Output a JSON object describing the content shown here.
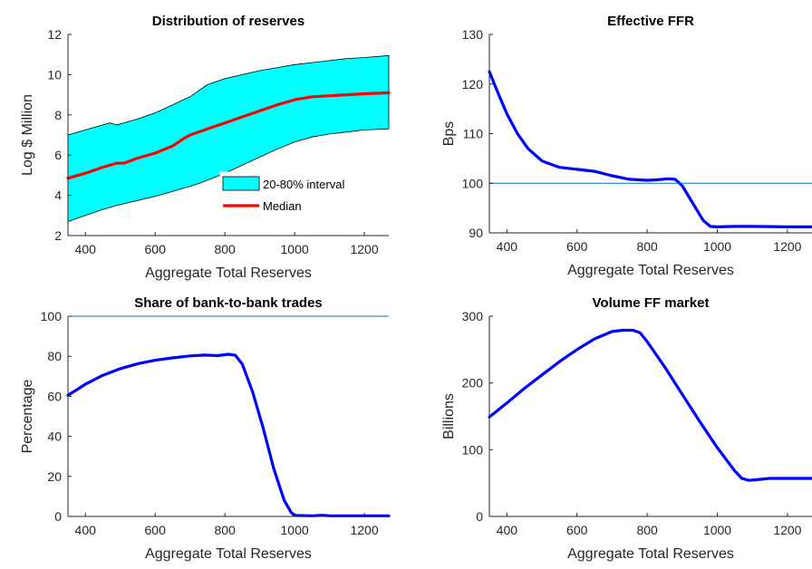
{
  "chart_data": [
    {
      "type": "area",
      "title": "Distribution of reserves",
      "xlabel": "Aggregate Total Reserves",
      "ylabel": "Log $ Million",
      "xlim": [
        350,
        1270
      ],
      "ylim": [
        2,
        12
      ],
      "xticks": [
        400,
        600,
        800,
        1000,
        1200
      ],
      "yticks": [
        2,
        4,
        6,
        8,
        10,
        12
      ],
      "legend_position": "lower-right",
      "series": [
        {
          "name": "20-80% interval",
          "kind": "band",
          "color": "#00ffff",
          "x": [
            350,
            400,
            450,
            470,
            490,
            550,
            600,
            650,
            700,
            720,
            750,
            800,
            850,
            900,
            950,
            1000,
            1050,
            1100,
            1150,
            1200,
            1270
          ],
          "upper": [
            7.0,
            7.25,
            7.5,
            7.6,
            7.5,
            7.8,
            8.1,
            8.5,
            8.9,
            9.15,
            9.5,
            9.8,
            10.0,
            10.2,
            10.35,
            10.5,
            10.6,
            10.7,
            10.8,
            10.85,
            10.95
          ],
          "lower": [
            2.7,
            3.0,
            3.3,
            3.4,
            3.5,
            3.75,
            3.95,
            4.2,
            4.45,
            4.55,
            4.75,
            5.1,
            5.5,
            5.9,
            6.3,
            6.65,
            6.9,
            7.05,
            7.15,
            7.25,
            7.3
          ]
        },
        {
          "name": "Median",
          "kind": "line",
          "color": "#ff0000",
          "x": [
            350,
            400,
            450,
            490,
            510,
            550,
            600,
            650,
            680,
            700,
            750,
            800,
            850,
            900,
            950,
            1000,
            1050,
            1100,
            1150,
            1200,
            1270
          ],
          "y": [
            4.85,
            5.1,
            5.4,
            5.6,
            5.6,
            5.85,
            6.1,
            6.45,
            6.8,
            7.0,
            7.3,
            7.6,
            7.9,
            8.2,
            8.5,
            8.75,
            8.9,
            8.95,
            9.0,
            9.05,
            9.1
          ]
        }
      ]
    },
    {
      "type": "line",
      "title": "Effective FFR",
      "xlabel": "Aggregate Total Reserves",
      "ylabel": "Bps",
      "xlim": [
        350,
        1270
      ],
      "ylim": [
        90,
        130
      ],
      "xticks": [
        400,
        600,
        800,
        1000,
        1200
      ],
      "yticks": [
        90,
        100,
        110,
        120,
        130
      ],
      "reference_line": 100,
      "series": [
        {
          "color": "#0000ff",
          "x": [
            350,
            370,
            400,
            430,
            460,
            500,
            550,
            600,
            650,
            700,
            750,
            800,
            830,
            860,
            880,
            900,
            930,
            960,
            980,
            1000,
            1050,
            1100,
            1200,
            1270
          ],
          "y": [
            122.5,
            119,
            114,
            110,
            107,
            104.5,
            103.2,
            102.8,
            102.4,
            101.5,
            100.8,
            100.6,
            100.7,
            100.9,
            100.8,
            99.5,
            96,
            92.5,
            91.3,
            91.2,
            91.3,
            91.3,
            91.2,
            91.2
          ]
        }
      ]
    },
    {
      "type": "line",
      "title": "Share of bank-to-bank trades",
      "xlabel": "Aggregate Total Reserves",
      "ylabel": "Percentage",
      "xlim": [
        350,
        1270
      ],
      "ylim": [
        0,
        100
      ],
      "xticks": [
        400,
        600,
        800,
        1000,
        1200
      ],
      "yticks": [
        0,
        20,
        40,
        60,
        80,
        100
      ],
      "reference_line": 100,
      "series": [
        {
          "color": "#0000ff",
          "x": [
            350,
            400,
            450,
            500,
            550,
            600,
            650,
            700,
            740,
            780,
            810,
            830,
            850,
            880,
            910,
            940,
            970,
            990,
            1000,
            1050,
            1080,
            1100,
            1200,
            1270
          ],
          "y": [
            60.5,
            66,
            70.5,
            73.8,
            76.3,
            78,
            79.2,
            80.2,
            80.6,
            80.3,
            81,
            80.5,
            76,
            62,
            44,
            24,
            8,
            2,
            0.5,
            0.3,
            0.6,
            0.3,
            0.3,
            0.3
          ]
        }
      ]
    },
    {
      "type": "line",
      "title": "Volume FF market",
      "xlabel": "Aggregate Total Reserves",
      "ylabel": "Billions",
      "xlim": [
        350,
        1270
      ],
      "ylim": [
        0,
        300
      ],
      "xticks": [
        400,
        600,
        800,
        1000,
        1200
      ],
      "yticks": [
        0,
        100,
        200,
        300
      ],
      "series": [
        {
          "color": "#0000ff",
          "x": [
            350,
            400,
            450,
            500,
            550,
            600,
            650,
            700,
            730,
            760,
            780,
            800,
            850,
            900,
            950,
            1000,
            1050,
            1070,
            1090,
            1110,
            1150,
            1200,
            1270
          ],
          "y": [
            149,
            170,
            192,
            212,
            232,
            250,
            266,
            277,
            279,
            279,
            275,
            262,
            224,
            183,
            142,
            103,
            68,
            57,
            54,
            55,
            57,
            57,
            57
          ]
        }
      ]
    }
  ]
}
